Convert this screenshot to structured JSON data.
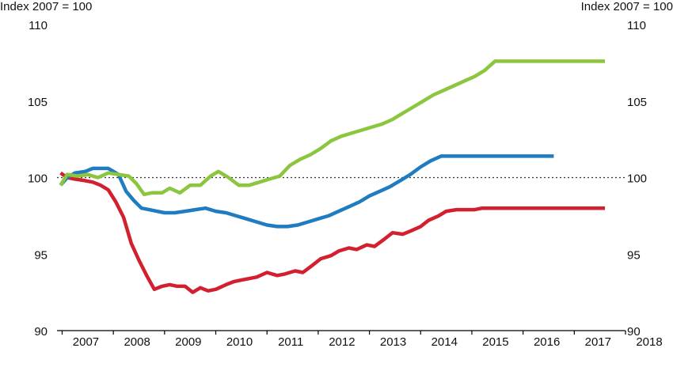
{
  "chart_data": {
    "type": "line",
    "y_unit_left": "Index 2007 = 100",
    "y_unit_right": "Index 2007 = 100",
    "ylim": [
      90,
      110
    ],
    "yticks": [
      90,
      95,
      100,
      105,
      110
    ],
    "ytick_labels": [
      "90",
      "95",
      "100",
      "105",
      "110"
    ],
    "xlim": [
      2006.9,
      2018.0
    ],
    "xtick_positions": [
      2007,
      2008,
      2009,
      2010,
      2011,
      2012,
      2013,
      2014,
      2015,
      2016,
      2017,
      2018
    ],
    "xtick_labels": [
      "2007",
      "2008",
      "2009",
      "2010",
      "2011",
      "2012",
      "2013",
      "2014",
      "2015",
      "2016",
      "2017",
      "2018"
    ],
    "reference_line": 100,
    "grid": false,
    "series": [
      {
        "color": "#d2202f",
        "x": [
          2006.97,
          2007.1,
          2007.25,
          2007.45,
          2007.6,
          2007.75,
          2007.9,
          2008.05,
          2008.2,
          2008.35,
          2008.5,
          2008.65,
          2008.8,
          2008.95,
          2009.1,
          2009.25,
          2009.4,
          2009.55,
          2009.7,
          2009.85,
          2010.0,
          2010.2,
          2010.35,
          2010.5,
          2010.65,
          2010.8,
          2011.0,
          2011.2,
          2011.35,
          2011.55,
          2011.7,
          2011.9,
          2012.05,
          2012.25,
          2012.4,
          2012.6,
          2012.75,
          2012.95,
          2013.1,
          2013.3,
          2013.45,
          2013.65,
          2013.8,
          2014.0,
          2014.15,
          2014.35,
          2014.5,
          2014.7,
          2014.85,
          2015.05,
          2015.2,
          2015.4,
          2015.55,
          2015.7,
          2015.9,
          2016.05,
          2016.25,
          2016.4,
          2016.6,
          2016.75,
          2016.95,
          2017.1,
          2017.3,
          2017.45,
          2017.6
        ],
        "values": [
          100.3,
          100.0,
          99.9,
          99.8,
          99.7,
          99.5,
          99.2,
          98.4,
          97.4,
          95.7,
          94.6,
          93.6,
          92.7,
          92.9,
          93.0,
          92.9,
          92.9,
          92.5,
          92.8,
          92.6,
          92.7,
          93.0,
          93.2,
          93.3,
          93.4,
          93.5,
          93.8,
          93.6,
          93.7,
          93.9,
          93.8,
          94.3,
          94.7,
          94.9,
          95.2,
          95.4,
          95.3,
          95.6,
          95.5,
          96.0,
          96.4,
          96.3,
          96.5,
          96.8,
          97.2,
          97.5,
          97.8,
          97.9,
          97.9,
          97.9,
          98.0,
          98.0,
          98.0,
          98.0,
          98.0,
          98.0,
          98.0,
          98.0,
          98.0,
          98.0,
          98.0,
          98.0,
          98.0,
          98.0,
          98.0
        ]
      },
      {
        "color": "#1f7cc1",
        "x": [
          2006.97,
          2007.1,
          2007.25,
          2007.45,
          2007.6,
          2007.75,
          2007.9,
          2008.1,
          2008.25,
          2008.4,
          2008.55,
          2008.7,
          2008.85,
          2009.0,
          2009.2,
          2009.4,
          2009.6,
          2009.8,
          2010.0,
          2010.2,
          2010.4,
          2010.6,
          2010.8,
          2011.0,
          2011.2,
          2011.4,
          2011.6,
          2011.8,
          2012.0,
          2012.2,
          2012.4,
          2012.6,
          2012.8,
          2013.0,
          2013.2,
          2013.4,
          2013.6,
          2013.8,
          2014.0,
          2014.2,
          2014.4,
          2014.6,
          2014.8,
          2015.0,
          2015.2,
          2015.4,
          2015.6,
          2015.8,
          2016.0,
          2016.2,
          2016.4,
          2016.6
        ],
        "values": [
          99.5,
          100.0,
          100.3,
          100.4,
          100.6,
          100.6,
          100.6,
          100.2,
          99.1,
          98.5,
          98.0,
          97.9,
          97.8,
          97.7,
          97.7,
          97.8,
          97.9,
          98.0,
          97.8,
          97.7,
          97.5,
          97.3,
          97.1,
          96.9,
          96.8,
          96.8,
          96.9,
          97.1,
          97.3,
          97.5,
          97.8,
          98.1,
          98.4,
          98.8,
          99.1,
          99.4,
          99.8,
          100.2,
          100.7,
          101.1,
          101.4,
          101.4,
          101.4,
          101.4,
          101.4,
          101.4,
          101.4,
          101.4,
          101.4,
          101.4,
          101.4,
          101.4
        ]
      },
      {
        "color": "#8cc63f",
        "x": [
          2006.97,
          2007.1,
          2007.3,
          2007.5,
          2007.7,
          2007.9,
          2008.1,
          2008.3,
          2008.45,
          2008.6,
          2008.75,
          2008.95,
          2009.1,
          2009.3,
          2009.5,
          2009.7,
          2009.9,
          2010.05,
          2010.25,
          2010.45,
          2010.65,
          2010.85,
          2011.05,
          2011.25,
          2011.45,
          2011.65,
          2011.85,
          2012.05,
          2012.25,
          2012.45,
          2012.65,
          2012.85,
          2013.05,
          2013.25,
          2013.45,
          2013.65,
          2013.85,
          2014.05,
          2014.25,
          2014.45,
          2014.65,
          2014.85,
          2015.05,
          2015.25,
          2015.45,
          2015.65,
          2015.85,
          2016.05,
          2016.25,
          2016.45,
          2016.65,
          2016.85,
          2017.05,
          2017.25,
          2017.45,
          2017.6
        ],
        "values": [
          99.5,
          100.2,
          100.1,
          100.2,
          100.0,
          100.3,
          100.2,
          100.1,
          99.6,
          98.9,
          99.0,
          99.0,
          99.3,
          99.0,
          99.5,
          99.5,
          100.1,
          100.4,
          100.0,
          99.5,
          99.5,
          99.7,
          99.9,
          100.1,
          100.8,
          101.2,
          101.5,
          101.9,
          102.4,
          102.7,
          102.9,
          103.1,
          103.3,
          103.5,
          103.8,
          104.2,
          104.6,
          105.0,
          105.4,
          105.7,
          106.0,
          106.3,
          106.6,
          107.0,
          107.6,
          107.6,
          107.6,
          107.6,
          107.6,
          107.6,
          107.6,
          107.6,
          107.6,
          107.6,
          107.6,
          107.6
        ]
      }
    ]
  }
}
